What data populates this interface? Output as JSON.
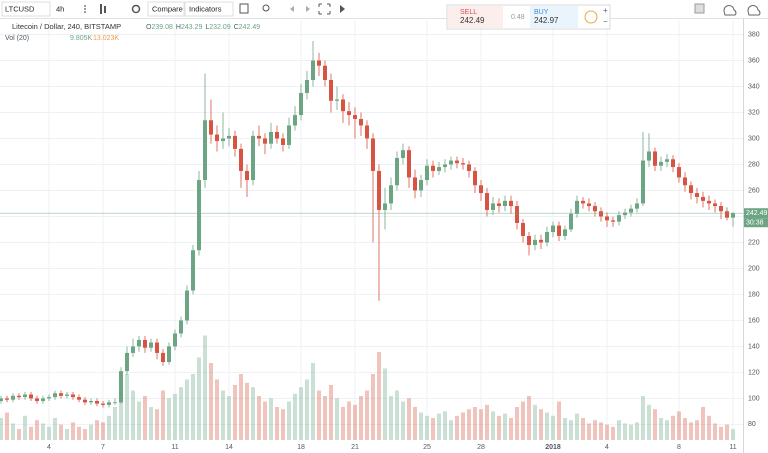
{
  "toolbar": {
    "symbol": "LTCUSD",
    "interval": "4h",
    "buttons": [
      "Compare",
      "Indicators"
    ]
  },
  "legend": {
    "title": "Litecoin / Dollar, 240, BITSTAMP",
    "ohlc_labels": [
      "O",
      "H",
      "L",
      "C"
    ],
    "volume_title": "Vol (20)",
    "volume_last": "9.805K",
    "volume_ma": "13.023K"
  },
  "trade": {
    "sell_label": "SELL",
    "sell": 242.49,
    "spread": 0.48,
    "buy_label": "BUY",
    "buy": 242.97
  },
  "countdown": "30:38",
  "chart_data": {
    "type": "candlestick",
    "categories": [
      null,
      null,
      null,
      null,
      null,
      null,
      null,
      null,
      "4",
      null,
      null,
      null,
      null,
      null,
      null,
      null,
      null,
      "7",
      null,
      null,
      null,
      null,
      null,
      null,
      null,
      null,
      null,
      null,
      null,
      "11",
      null,
      null,
      null,
      null,
      null,
      null,
      null,
      null,
      "14",
      null,
      null,
      null,
      null,
      null,
      null,
      null,
      null,
      null,
      null,
      null,
      "18",
      null,
      null,
      null,
      null,
      null,
      null,
      null,
      null,
      "21",
      null,
      null,
      null,
      null,
      null,
      null,
      null,
      null,
      null,
      null,
      null,
      "25",
      null,
      null,
      null,
      null,
      null,
      null,
      null,
      null,
      "28",
      null,
      null,
      null,
      null,
      null,
      null,
      null,
      null,
      null,
      null,
      null,
      "2018",
      null,
      null,
      null,
      null,
      null,
      null,
      null,
      null,
      "4",
      null,
      null,
      null,
      null,
      null,
      null,
      null,
      null,
      null,
      null,
      null,
      "8",
      null,
      null,
      null,
      null,
      null,
      null,
      null,
      null,
      "11"
    ],
    "open": [
      98,
      100,
      99,
      102,
      101,
      103,
      100,
      98,
      100,
      101,
      104,
      102,
      103,
      101,
      99,
      97,
      98,
      96,
      95,
      97,
      97,
      121,
      135,
      140,
      145,
      139,
      143,
      135,
      128,
      140,
      150,
      160,
      183,
      214,
      268,
      314,
      303,
      298,
      300,
      302,
      292,
      275,
      268,
      302,
      300,
      296,
      305,
      300,
      295,
      310,
      318,
      335,
      345,
      360,
      356,
      345,
      329,
      330,
      321,
      318,
      315,
      310,
      300,
      275,
      245,
      250,
      264,
      285,
      291,
      270,
      260,
      268,
      279,
      275,
      278,
      280,
      283,
      281,
      280,
      275,
      264,
      258,
      245,
      250,
      248,
      252,
      248,
      235,
      225,
      218,
      222,
      220,
      228,
      233,
      225,
      230,
      242,
      252,
      250,
      248,
      244,
      240,
      237,
      236,
      241,
      243,
      246,
      250,
      283,
      290,
      279,
      282,
      284,
      278,
      270,
      264,
      258,
      255,
      252,
      250,
      248,
      244,
      239.08
    ],
    "high": [
      102,
      102,
      104,
      104,
      105,
      105,
      102,
      102,
      103,
      106,
      106,
      105,
      105,
      103,
      101,
      100,
      100,
      98,
      99,
      100,
      124,
      140,
      146,
      148,
      148,
      146,
      146,
      138,
      143,
      153,
      163,
      187,
      218,
      275,
      350,
      330,
      310,
      320,
      308,
      306,
      296,
      280,
      306,
      310,
      304,
      312,
      310,
      304,
      316,
      325,
      342,
      352,
      375,
      366,
      360,
      350,
      340,
      334,
      328,
      324,
      320,
      314,
      304,
      280,
      262,
      270,
      290,
      296,
      294,
      276,
      272,
      284,
      283,
      282,
      284,
      286,
      286,
      285,
      283,
      278,
      268,
      262,
      255,
      254,
      256,
      256,
      252,
      238,
      228,
      226,
      226,
      232,
      236,
      236,
      233,
      246,
      256,
      255,
      254,
      251,
      247,
      243,
      240,
      244,
      246,
      249,
      254,
      305,
      304,
      293,
      286,
      288,
      287,
      281,
      274,
      267,
      262,
      259,
      256,
      253,
      251,
      247,
      243.29
    ],
    "low": [
      96,
      97,
      97,
      99,
      99,
      98,
      96,
      96,
      98,
      99,
      100,
      100,
      99,
      97,
      95,
      95,
      94,
      93,
      93,
      95,
      96,
      118,
      132,
      136,
      135,
      136,
      130,
      125,
      126,
      137,
      147,
      157,
      180,
      210,
      262,
      296,
      290,
      292,
      294,
      286,
      262,
      255,
      264,
      294,
      288,
      292,
      296,
      290,
      292,
      306,
      314,
      330,
      340,
      348,
      340,
      320,
      322,
      312,
      310,
      300,
      302,
      292,
      220,
      175,
      230,
      245,
      260,
      280,
      262,
      254,
      255,
      264,
      270,
      272,
      274,
      276,
      277,
      276,
      270,
      258,
      252,
      240,
      241,
      243,
      244,
      242,
      230,
      220,
      210,
      214,
      215,
      217,
      224,
      221,
      222,
      228,
      239,
      246,
      244,
      240,
      236,
      232,
      232,
      233,
      238,
      240,
      243,
      248,
      278,
      275,
      275,
      278,
      274,
      266,
      259,
      253,
      250,
      247,
      245,
      243,
      238,
      237,
      232.09
    ],
    "close": [
      100,
      99,
      102,
      101,
      103,
      100,
      98,
      100,
      101,
      104,
      102,
      103,
      101,
      99,
      97,
      98,
      96,
      95,
      97,
      97,
      121,
      135,
      140,
      145,
      139,
      143,
      135,
      128,
      140,
      150,
      160,
      183,
      214,
      268,
      314,
      303,
      298,
      300,
      302,
      292,
      275,
      268,
      302,
      300,
      296,
      305,
      300,
      295,
      310,
      318,
      335,
      345,
      360,
      356,
      345,
      329,
      330,
      321,
      318,
      315,
      310,
      300,
      275,
      245,
      250,
      264,
      285,
      291,
      270,
      260,
      268,
      279,
      275,
      278,
      280,
      283,
      281,
      280,
      275,
      264,
      258,
      245,
      250,
      248,
      252,
      248,
      235,
      225,
      218,
      222,
      220,
      228,
      233,
      225,
      230,
      242,
      252,
      250,
      248,
      244,
      240,
      237,
      236,
      241,
      243,
      246,
      250,
      283,
      290,
      279,
      282,
      284,
      278,
      270,
      264,
      258,
      255,
      252,
      250,
      248,
      244,
      239.08,
      242.49
    ],
    "volume": [
      20,
      25,
      15,
      10,
      22,
      12,
      18,
      15,
      12,
      20,
      14,
      10,
      16,
      12,
      10,
      14,
      18,
      16,
      22,
      30,
      55,
      60,
      45,
      35,
      40,
      30,
      28,
      45,
      38,
      42,
      48,
      55,
      60,
      75,
      95,
      70,
      55,
      45,
      40,
      50,
      60,
      52,
      48,
      40,
      35,
      38,
      30,
      28,
      35,
      42,
      48,
      55,
      70,
      45,
      40,
      50,
      38,
      30,
      35,
      32,
      40,
      45,
      60,
      80,
      65,
      40,
      45,
      35,
      38,
      30,
      25,
      22,
      20,
      24,
      26,
      18,
      22,
      25,
      28,
      30,
      28,
      32,
      26,
      22,
      24,
      20,
      30,
      35,
      40,
      32,
      28,
      25,
      22,
      35,
      20,
      18,
      24,
      20,
      15,
      18,
      16,
      14,
      12,
      18,
      15,
      14,
      16,
      40,
      32,
      28,
      20,
      18,
      22,
      26,
      20,
      16,
      18,
      30,
      22,
      15,
      12,
      14,
      9.805
    ],
    "up_color": "#6ba583",
    "down_color": "#d75442",
    "ylim": [
      68,
      385
    ],
    "yticks": [
      80,
      100,
      120,
      140,
      160,
      180,
      200,
      220,
      240,
      260,
      280,
      300,
      320,
      340,
      360,
      380
    ],
    "volume_lim": [
      0,
      100
    ],
    "grid": true
  }
}
